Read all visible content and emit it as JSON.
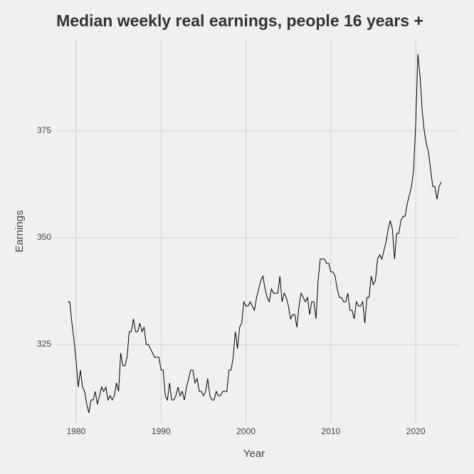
{
  "chart_data": {
    "type": "line",
    "title": "Median weekly real earnings, people 16 years +",
    "xlabel": "Year",
    "ylabel": "Earnings",
    "grid": true,
    "xlim": [
      1977.57,
      2025.1
    ],
    "xticks": [
      1980,
      1990,
      2000,
      2010,
      2020
    ],
    "ylim": [
      306.5,
      396.5
    ],
    "yticks": [
      325,
      350,
      375
    ],
    "series": [
      {
        "name": "Earnings",
        "color": "#000000",
        "x": [
          1979,
          1979.25,
          1979.5,
          1979.75,
          1980,
          1980.25,
          1980.5,
          1980.75,
          1981,
          1981.25,
          1981.5,
          1981.75,
          1982,
          1982.25,
          1982.5,
          1982.75,
          1983,
          1983.25,
          1983.5,
          1983.75,
          1984,
          1984.25,
          1984.5,
          1984.75,
          1985,
          1985.25,
          1985.5,
          1985.75,
          1986,
          1986.25,
          1986.5,
          1986.75,
          1987,
          1987.25,
          1987.5,
          1987.75,
          1988,
          1988.25,
          1988.5,
          1988.75,
          1989,
          1989.25,
          1989.5,
          1989.75,
          1990,
          1990.25,
          1990.5,
          1990.75,
          1991,
          1991.25,
          1991.5,
          1991.75,
          1992,
          1992.25,
          1992.5,
          1992.75,
          1993,
          1993.25,
          1993.5,
          1993.75,
          1994,
          1994.25,
          1994.5,
          1994.75,
          1995,
          1995.25,
          1995.5,
          1995.75,
          1996,
          1996.25,
          1996.5,
          1996.75,
          1997,
          1997.25,
          1997.5,
          1997.75,
          1998,
          1998.25,
          1998.5,
          1998.75,
          1999,
          1999.25,
          1999.5,
          1999.75,
          2000,
          2000.25,
          2000.5,
          2000.75,
          2001,
          2001.25,
          2001.5,
          2001.75,
          2002,
          2002.25,
          2002.5,
          2002.75,
          2003,
          2003.25,
          2003.5,
          2003.75,
          2004,
          2004.25,
          2004.5,
          2004.75,
          2005,
          2005.25,
          2005.5,
          2005.75,
          2006,
          2006.25,
          2006.5,
          2006.75,
          2007,
          2007.25,
          2007.5,
          2007.75,
          2008,
          2008.25,
          2008.5,
          2008.75,
          2009,
          2009.25,
          2009.5,
          2009.75,
          2010,
          2010.25,
          2010.5,
          2010.75,
          2011,
          2011.25,
          2011.5,
          2011.75,
          2012,
          2012.25,
          2012.5,
          2012.75,
          2013,
          2013.25,
          2013.5,
          2013.75,
          2014,
          2014.25,
          2014.5,
          2014.75,
          2015,
          2015.25,
          2015.5,
          2015.75,
          2016,
          2016.25,
          2016.5,
          2016.75,
          2017,
          2017.25,
          2017.5,
          2017.75,
          2018,
          2018.25,
          2018.5,
          2018.75,
          2019,
          2019.25,
          2019.5,
          2019.75,
          2020,
          2020.25,
          2020.5,
          2020.75,
          2021,
          2021.25,
          2021.5,
          2021.75,
          2022,
          2022.25,
          2022.5,
          2022.75,
          2023
        ],
        "values": [
          335,
          335,
          330,
          326,
          321,
          315,
          319,
          315,
          314,
          311,
          309,
          312,
          312,
          314,
          311,
          313,
          315,
          314,
          315,
          312,
          313,
          312,
          313,
          316,
          314,
          323,
          320,
          320,
          322,
          328,
          328,
          331,
          328,
          328,
          330,
          328,
          329,
          325,
          325,
          324,
          323,
          322,
          322,
          322,
          319,
          319,
          313,
          312,
          316,
          312,
          312,
          313,
          315,
          313,
          314,
          312,
          315,
          317,
          319,
          319,
          316,
          317,
          314,
          314,
          313,
          314,
          317,
          313,
          312,
          312,
          314,
          313,
          313,
          314,
          314,
          314,
          319,
          319,
          322,
          328,
          324,
          329,
          330,
          335,
          334,
          334,
          335,
          334,
          333,
          336,
          338,
          340,
          341,
          338,
          336,
          335,
          338,
          337,
          337,
          337,
          341,
          335,
          337,
          336,
          334,
          331,
          332,
          332,
          329,
          334,
          337,
          336,
          335,
          336,
          332,
          335,
          335,
          331,
          340,
          345,
          345,
          345,
          344,
          344,
          342,
          342,
          341,
          338,
          336,
          336,
          335,
          335,
          337,
          333,
          333,
          331,
          335,
          334,
          334,
          335,
          330,
          336,
          336,
          341,
          339,
          340,
          345,
          346,
          345,
          347,
          349,
          352,
          354,
          352,
          345,
          351,
          351,
          354,
          355,
          355,
          358,
          360,
          362,
          366,
          377,
          393,
          388,
          380,
          375,
          372,
          370,
          366,
          362,
          362,
          359,
          362,
          363
        ]
      }
    ]
  }
}
